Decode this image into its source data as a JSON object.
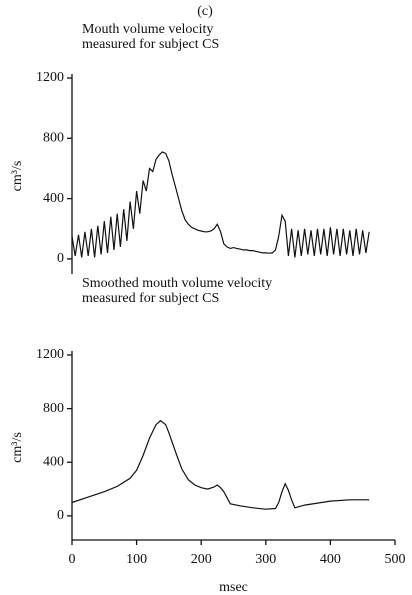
{
  "panel_label": "(c)",
  "chart_data": [
    {
      "type": "line",
      "title": [
        "Mouth volume velocity",
        "measured for subject CS"
      ],
      "ylabel": "cm³/s",
      "xlim": [
        0,
        500
      ],
      "ylim": [
        -100,
        1200
      ],
      "yticks": [
        0,
        400,
        800,
        1200
      ],
      "x": [
        0,
        5,
        10,
        15,
        20,
        25,
        30,
        35,
        40,
        45,
        50,
        55,
        60,
        65,
        70,
        75,
        80,
        85,
        90,
        95,
        100,
        105,
        110,
        115,
        120,
        125,
        130,
        135,
        140,
        145,
        150,
        155,
        160,
        165,
        170,
        175,
        180,
        185,
        190,
        195,
        200,
        205,
        210,
        215,
        220,
        225,
        230,
        235,
        240,
        245,
        250,
        255,
        260,
        265,
        270,
        275,
        280,
        285,
        290,
        295,
        300,
        305,
        310,
        315,
        320,
        325,
        330,
        335,
        340,
        345,
        350,
        355,
        360,
        365,
        370,
        375,
        380,
        385,
        390,
        395,
        400,
        405,
        410,
        415,
        420,
        425,
        430,
        435,
        440,
        445,
        450,
        455,
        460
      ],
      "series": [
        {
          "color": "#111111",
          "values": [
            150,
            20,
            160,
            10,
            180,
            20,
            200,
            10,
            220,
            30,
            250,
            40,
            280,
            60,
            300,
            80,
            330,
            120,
            380,
            200,
            450,
            300,
            520,
            450,
            600,
            580,
            660,
            690,
            710,
            700,
            650,
            560,
            480,
            400,
            320,
            260,
            230,
            210,
            200,
            190,
            185,
            180,
            180,
            185,
            200,
            230,
            180,
            100,
            80,
            70,
            75,
            70,
            65,
            60,
            60,
            55,
            55,
            50,
            45,
            40,
            40,
            38,
            40,
            60,
            150,
            290,
            250,
            20,
            200,
            10,
            190,
            20,
            200,
            30,
            190,
            20,
            200,
            30,
            200,
            20,
            210,
            30,
            200,
            20,
            200,
            30,
            190,
            20,
            200,
            30,
            190,
            40,
            180
          ]
        }
      ]
    },
    {
      "type": "line",
      "title": [
        "Smoothed mouth volume velocity",
        "measured for subject CS"
      ],
      "ylabel": "cm³/s",
      "xlabel": "msec",
      "xlim": [
        0,
        500
      ],
      "ylim": [
        -180,
        1200
      ],
      "yticks": [
        0,
        400,
        800,
        1200
      ],
      "xticks": [
        0,
        100,
        200,
        300,
        400,
        500
      ],
      "x": [
        0,
        25,
        50,
        70,
        90,
        100,
        110,
        120,
        130,
        137,
        145,
        150,
        160,
        170,
        180,
        190,
        200,
        210,
        220,
        225,
        230,
        235,
        245,
        260,
        280,
        300,
        315,
        320,
        325,
        330,
        335,
        340,
        345,
        360,
        380,
        400,
        430,
        460
      ],
      "series": [
        {
          "color": "#111111",
          "values": [
            100,
            140,
            180,
            220,
            280,
            340,
            450,
            580,
            680,
            710,
            680,
            620,
            480,
            350,
            270,
            230,
            210,
            200,
            215,
            230,
            210,
            180,
            90,
            75,
            60,
            50,
            55,
            100,
            180,
            240,
            190,
            120,
            60,
            80,
            95,
            110,
            120,
            120
          ]
        }
      ]
    }
  ]
}
